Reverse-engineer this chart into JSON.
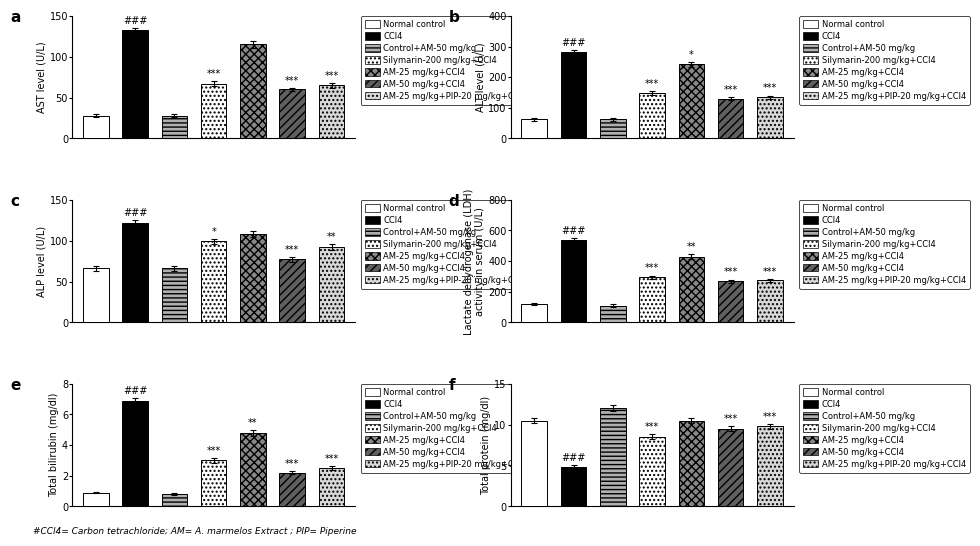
{
  "panels": [
    {
      "label": "a",
      "ylabel": "AST level (U/L)",
      "ylim": [
        0,
        150
      ],
      "yticks": [
        0,
        50,
        100,
        150
      ],
      "values": [
        28,
        133,
        28,
        67,
        115,
        60,
        65
      ],
      "errors": [
        2,
        2,
        2,
        3,
        4,
        2,
        3
      ],
      "sig_above": [
        "",
        "###",
        "",
        "***",
        "",
        "***",
        "***"
      ]
    },
    {
      "label": "b",
      "ylabel": "ALT level (U/L)",
      "ylim": [
        0,
        400
      ],
      "yticks": [
        0,
        100,
        200,
        300,
        400
      ],
      "values": [
        62,
        283,
        62,
        148,
        242,
        130,
        135
      ],
      "errors": [
        4,
        6,
        4,
        6,
        8,
        5,
        5
      ],
      "sig_above": [
        "",
        "###",
        "",
        "***",
        "*",
        "***",
        "***"
      ]
    },
    {
      "label": "c",
      "ylabel": "ALP level (U/L)",
      "ylim": [
        0,
        150
      ],
      "yticks": [
        0,
        50,
        100,
        150
      ],
      "values": [
        66,
        122,
        66,
        99,
        108,
        77,
        92
      ],
      "errors": [
        3,
        3,
        3,
        3,
        4,
        3,
        4
      ],
      "sig_above": [
        "",
        "###",
        "",
        "*",
        "",
        "***",
        "**"
      ]
    },
    {
      "label": "d",
      "ylabel": "Lactate dehydrogenase (LDH)\nactivity in serum (U/L)",
      "ylim": [
        0,
        800
      ],
      "yticks": [
        0,
        200,
        400,
        600,
        800
      ],
      "values": [
        120,
        540,
        110,
        295,
        430,
        270,
        275
      ],
      "errors": [
        8,
        12,
        7,
        10,
        15,
        10,
        10
      ],
      "sig_above": [
        "",
        "###",
        "",
        "***",
        "**",
        "***",
        "***"
      ]
    },
    {
      "label": "e",
      "ylabel": "Total bilirubin (mg/dl)",
      "ylim": [
        0,
        8
      ],
      "yticks": [
        0,
        2,
        4,
        6,
        8
      ],
      "values": [
        0.9,
        6.9,
        0.8,
        3.0,
        4.8,
        2.2,
        2.5
      ],
      "errors": [
        0.06,
        0.15,
        0.06,
        0.15,
        0.2,
        0.1,
        0.12
      ],
      "sig_above": [
        "",
        "###",
        "",
        "***",
        "**",
        "***",
        "***"
      ]
    },
    {
      "label": "f",
      "ylabel": "Total protein (mg/dl)",
      "ylim": [
        0,
        15
      ],
      "yticks": [
        0,
        5,
        10,
        15
      ],
      "values": [
        10.5,
        4.8,
        12.0,
        8.5,
        10.5,
        9.5,
        9.8
      ],
      "errors": [
        0.3,
        0.2,
        0.35,
        0.3,
        0.35,
        0.3,
        0.3
      ],
      "sig_above": [
        "",
        "###",
        "",
        "***",
        "",
        "***",
        "***"
      ]
    }
  ],
  "legend_labels": [
    "Normal control",
    "CCl4",
    "Control+AM-50 mg/kg",
    "Silymarin-200 mg/kg+CCl4",
    "AM-25 mg/kg+CCl4",
    "AM-50 mg/kg+CCl4",
    "AM-25 mg/kg+PIP-20 mg/kg+CCl4"
  ],
  "footnote": "#CCl4= Carbon tetrachloride; AM= A. marmelos Extract ; PIP= Piperine",
  "background_color": "white",
  "fontsize_label": 7,
  "fontsize_tick": 7,
  "fontsize_sig": 7,
  "fontsize_panel": 11,
  "fontsize_legend": 6
}
